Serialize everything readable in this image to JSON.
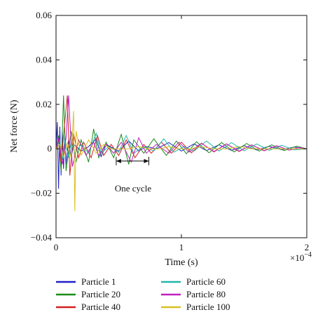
{
  "chart_data": {
    "type": "line",
    "xlabel": "Time (s)",
    "ylabel": "Net force (N)",
    "x_exponent_label": "×10",
    "x_exponent_power": "−4",
    "xlim": [
      0,
      2
    ],
    "ylim": [
      -0.04,
      0.06
    ],
    "x_ticks": [
      0,
      1,
      2
    ],
    "x_tick_labels": [
      "0",
      "1",
      "2"
    ],
    "y_ticks": [
      -0.04,
      -0.02,
      0,
      0.02,
      0.04,
      0.06
    ],
    "y_tick_labels": [
      "−0.04",
      "−0.02",
      "0",
      "0.02",
      "0.04",
      "0.06"
    ],
    "grid": false,
    "legend_position": "bottom",
    "annotation": {
      "text": "One cycle",
      "x_start": 0.48,
      "x_end": 0.74,
      "y": -0.0055
    },
    "series": [
      {
        "name": "Particle 1",
        "color": "#2020c8",
        "x": [
          0.0,
          0.01,
          0.02,
          0.03,
          0.04,
          0.05,
          0.06,
          0.07,
          0.08,
          0.1,
          0.12,
          0.14,
          0.2,
          0.26,
          0.32,
          0.36,
          0.4,
          0.5,
          0.58,
          0.66,
          0.72,
          0.8,
          0.9,
          1.0,
          1.1,
          1.2,
          1.3,
          1.4,
          1.5,
          1.6,
          1.7,
          1.8,
          1.9,
          2.0
        ],
        "y": [
          0.0,
          0.012,
          -0.018,
          0.01,
          -0.012,
          0.008,
          -0.009,
          0.006,
          -0.007,
          0.004,
          -0.004,
          0.002,
          -0.001,
          0.001,
          0.0045,
          -0.0035,
          0.002,
          -0.001,
          0.0035,
          -0.001,
          0.001,
          0.0,
          0.0028,
          -0.001,
          0.0022,
          -0.0008,
          0.0018,
          -0.0007,
          0.0014,
          -0.0005,
          0.0011,
          -0.0004,
          0.0008,
          0.0
        ]
      },
      {
        "name": "Particle 20",
        "color": "#1a8c1a",
        "x": [
          0.0,
          0.02,
          0.04,
          0.06,
          0.08,
          0.12,
          0.16,
          0.2,
          0.26,
          0.3,
          0.34,
          0.4,
          0.46,
          0.52,
          0.58,
          0.62,
          0.7,
          0.78,
          0.88,
          0.96,
          1.04,
          1.12,
          1.22,
          1.32,
          1.42,
          1.52,
          1.62,
          1.72,
          1.82,
          1.92,
          2.0
        ],
        "y": [
          0.0,
          0.006,
          -0.01,
          0.024,
          -0.01,
          0.008,
          -0.006,
          0.004,
          -0.006,
          0.009,
          -0.004,
          0.003,
          -0.004,
          0.0065,
          -0.007,
          0.004,
          -0.002,
          0.0045,
          -0.003,
          0.0035,
          -0.0022,
          0.0032,
          -0.0018,
          0.0028,
          -0.0014,
          0.0024,
          -0.001,
          0.0018,
          -0.0008,
          0.0012,
          0.0
        ]
      },
      {
        "name": "Particle 40",
        "color": "#d42020",
        "x": [
          0.0,
          0.02,
          0.04,
          0.06,
          0.09,
          0.11,
          0.14,
          0.18,
          0.22,
          0.28,
          0.33,
          0.38,
          0.44,
          0.5,
          0.56,
          0.63,
          0.7,
          0.76,
          0.84,
          0.92,
          1.0,
          1.08,
          1.16,
          1.26,
          1.36,
          1.46,
          1.56,
          1.66,
          1.76,
          1.86,
          1.94,
          2.0
        ],
        "y": [
          0.0,
          0.004,
          -0.006,
          0.006,
          0.024,
          -0.012,
          0.007,
          -0.004,
          0.003,
          -0.004,
          0.006,
          -0.003,
          0.002,
          -0.003,
          0.004,
          -0.004,
          0.002,
          -0.002,
          0.003,
          -0.002,
          0.003,
          -0.0018,
          0.0026,
          -0.0014,
          0.0022,
          -0.0012,
          0.0018,
          -0.0009,
          0.0014,
          -0.0006,
          0.0006,
          0.0
        ]
      },
      {
        "name": "Particle 60",
        "color": "#20b8a8",
        "x": [
          0.0,
          0.03,
          0.05,
          0.07,
          0.1,
          0.12,
          0.15,
          0.2,
          0.26,
          0.32,
          0.36,
          0.42,
          0.5,
          0.56,
          0.62,
          0.7,
          0.78,
          0.86,
          0.94,
          1.02,
          1.1,
          1.2,
          1.3,
          1.4,
          1.5,
          1.6,
          1.7,
          1.8,
          1.9,
          2.0
        ],
        "y": [
          0.0,
          0.004,
          -0.005,
          0.004,
          -0.004,
          0.003,
          -0.002,
          0.002,
          -0.002,
          0.007,
          -0.002,
          0.001,
          -0.0015,
          0.006,
          -0.002,
          0.001,
          -0.001,
          0.0045,
          -0.0015,
          0.001,
          -0.001,
          0.0035,
          -0.001,
          0.0028,
          -0.0009,
          0.0022,
          -0.0007,
          0.0016,
          -0.0005,
          0.0
        ]
      },
      {
        "name": "Particle 80",
        "color": "#c020c0",
        "x": [
          0.0,
          0.02,
          0.05,
          0.08,
          0.1,
          0.13,
          0.18,
          0.24,
          0.3,
          0.34,
          0.4,
          0.46,
          0.52,
          0.6,
          0.66,
          0.72,
          0.8,
          0.9,
          0.98,
          1.06,
          1.16,
          1.26,
          1.36,
          1.46,
          1.56,
          1.66,
          1.76,
          1.86,
          1.94,
          2.0
        ],
        "y": [
          0.0,
          0.005,
          -0.007,
          0.005,
          0.024,
          -0.008,
          0.004,
          -0.003,
          0.003,
          -0.003,
          0.002,
          -0.002,
          0.003,
          -0.006,
          0.005,
          -0.002,
          0.002,
          -0.002,
          0.003,
          -0.0015,
          0.0025,
          -0.0012,
          0.0022,
          -0.001,
          0.0018,
          -0.0008,
          0.0014,
          -0.0006,
          0.0006,
          0.0
        ]
      },
      {
        "name": "Particle 100",
        "color": "#d8c020",
        "x": [
          0.0,
          0.03,
          0.06,
          0.09,
          0.12,
          0.14,
          0.15,
          0.16,
          0.2,
          0.26,
          0.32,
          0.38,
          0.44,
          0.5,
          0.58,
          0.66,
          0.74,
          0.82,
          0.9,
          0.98,
          1.06,
          1.16,
          1.26,
          1.36,
          1.46,
          1.56,
          1.66,
          1.76,
          1.86,
          1.96,
          2.0
        ],
        "y": [
          0.0,
          0.002,
          -0.004,
          0.003,
          -0.004,
          0.017,
          -0.028,
          0.008,
          -0.003,
          0.004,
          -0.002,
          0.002,
          0.0,
          0.0,
          0.0,
          0.001,
          0.0,
          0.0,
          0.001,
          0.0,
          0.0,
          0.001,
          0.0,
          0.0,
          0.001,
          0.0,
          0.0,
          0.0,
          0.0,
          0.0,
          0.0
        ]
      }
    ]
  }
}
